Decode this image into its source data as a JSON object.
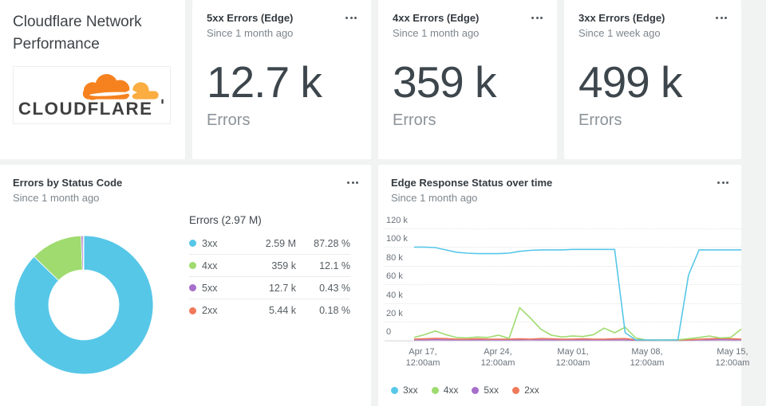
{
  "header_card": {
    "title": "Cloudflare Network Performance",
    "logo_text": "CLOUDFLARE"
  },
  "stat_cards": [
    {
      "title": "5xx Errors (Edge)",
      "subtitle": "Since 1 month ago",
      "value": "12.7 k",
      "unit": "Errors"
    },
    {
      "title": "4xx Errors (Edge)",
      "subtitle": "Since 1 month ago",
      "value": "359 k",
      "unit": "Errors"
    },
    {
      "title": "3xx Errors (Edge)",
      "subtitle": "Since 1 week ago",
      "value": "499 k",
      "unit": "Errors"
    }
  ],
  "donut_card": {
    "title": "Errors by Status Code",
    "subtitle": "Since 1 month ago",
    "legend_title": "Errors (2.97 M)"
  },
  "timeseries_card": {
    "title": "Edge Response Status over time",
    "subtitle": "Since 1 month ago"
  },
  "colors": {
    "status_3xx": "#57C7E8",
    "status_4xx": "#9FDB6F",
    "status_5xx": "#A76FC9",
    "status_2xx": "#F0795A",
    "cloudflare_orange": "#F6821F",
    "cloudflare_light_orange": "#FBAD41"
  },
  "chart_data": [
    {
      "type": "pie",
      "donut": true,
      "title": "Errors by Status Code",
      "total_label": "Errors (2.97 M)",
      "labels": [
        "3xx",
        "4xx",
        "5xx",
        "2xx"
      ],
      "value_labels": [
        "2.59 M",
        "359 k",
        "12.7 k",
        "5.44 k"
      ],
      "percent_labels": [
        "87.28 %",
        "12.1 %",
        "0.43 %",
        "0.18 %"
      ],
      "percents": [
        87.28,
        12.1,
        0.43,
        0.18
      ],
      "colors": [
        "#57C7E8",
        "#9FDB6F",
        "#A76FC9",
        "#F0795A"
      ]
    },
    {
      "type": "line",
      "title": "Edge Response Status over time",
      "y_tick_labels": [
        "120 k",
        "100 k",
        "80 k",
        "60 k",
        "40 k",
        "20 k",
        "0"
      ],
      "ylim_k": [
        0,
        120
      ],
      "x_tick_labels": [
        "Apr 17,|12:00am",
        "Apr 24,|12:00am",
        "May 01,|12:00am",
        "May 08,|12:00am",
        "May 15,|12:00am"
      ],
      "legend": [
        "3xx",
        "4xx",
        "5xx",
        "2xx"
      ],
      "series": [
        {
          "name": "3xx",
          "color": "#57C7E8",
          "values_k": [
            100,
            100,
            99.5,
            97,
            94.5,
            93.5,
            93,
            93,
            93,
            93.5,
            95.5,
            96.5,
            97,
            97,
            97,
            97.5,
            97.5,
            97.5,
            97.5,
            97.5,
            8,
            0.4,
            0.3,
            0.3,
            0.3,
            0.3,
            70,
            97,
            97,
            97,
            97,
            97
          ]
        },
        {
          "name": "4xx",
          "color": "#9FDB6F",
          "values_k": [
            3,
            6,
            10,
            6,
            3,
            2.5,
            3.5,
            3,
            5.5,
            2,
            35,
            24,
            12,
            5.5,
            3.5,
            4.5,
            4,
            6,
            13,
            8,
            14,
            2.5,
            0.3,
            0.2,
            0.2,
            0.5,
            1.5,
            3,
            4.5,
            2.5,
            3,
            12
          ]
        },
        {
          "name": "5xx",
          "color": "#A76FC9",
          "values_k": [
            0.4,
            0.4,
            0.5,
            0.4,
            0.4,
            0.4,
            0.4,
            0.4,
            0.4,
            0.4,
            0.4,
            0.5,
            0.4,
            0.4,
            0.4,
            0.4,
            0.4,
            0.4,
            0.4,
            0.4,
            0.4,
            0.1,
            0.1,
            0.1,
            0.1,
            0.1,
            0.2,
            0.4,
            0.4,
            0.5,
            0.4,
            0.4
          ]
        },
        {
          "name": "2xx",
          "color": "#F0795A",
          "values_k": [
            1.2,
            1.5,
            2,
            1.8,
            1.2,
            1.2,
            1.5,
            1.2,
            1.2,
            1.2,
            1.5,
            1.2,
            1.8,
            1.5,
            1.2,
            1.2,
            1.5,
            1.2,
            1.2,
            1.5,
            1.8,
            0.5,
            0.2,
            0.2,
            0.2,
            0.2,
            0.5,
            1,
            1.5,
            2,
            1.5,
            1.2
          ]
        }
      ]
    }
  ]
}
